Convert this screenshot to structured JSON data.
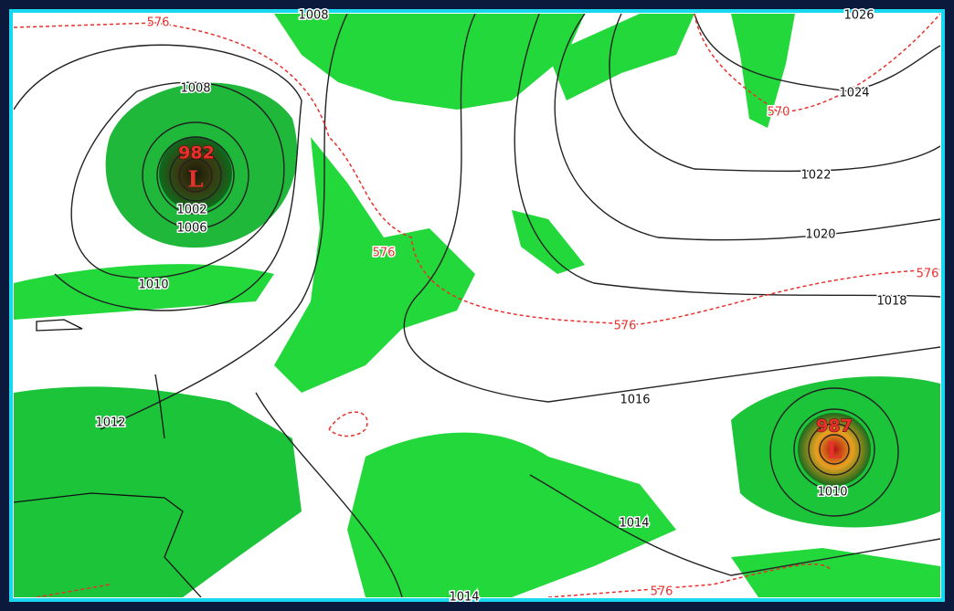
{
  "isobar_labels": [
    "1008",
    "1026",
    "1008",
    "1002",
    "1006",
    "1010",
    "1024",
    "1022",
    "1020",
    "1018",
    "1016",
    "1012",
    "1010",
    "1014",
    "1014"
  ],
  "thickness_labels": [
    "576",
    "576",
    "570",
    "576",
    "576",
    "576"
  ],
  "lows": [
    {
      "pressure": "982",
      "symbol": "L"
    },
    {
      "pressure": "987",
      "symbol": "L"
    }
  ]
}
